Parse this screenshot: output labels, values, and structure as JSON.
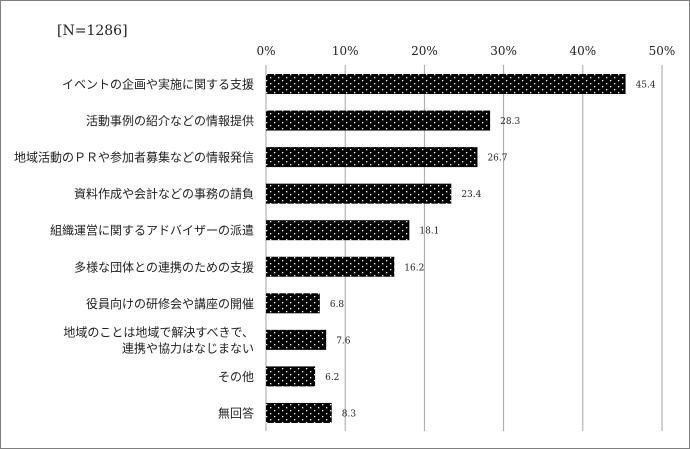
{
  "chart_data": {
    "type": "bar",
    "orientation": "horizontal",
    "sample_label": "[N=1286]",
    "categories": [
      [
        "イベントの企画や実施に関する支援"
      ],
      [
        "活動事例の紹介などの情報提供"
      ],
      [
        "地域活動のＰＲや参加者募集などの情報発信"
      ],
      [
        "資料作成や会計などの事務の請負"
      ],
      [
        "組織運営に関するアドバイザーの派遣"
      ],
      [
        "多様な団体との連携のための支援"
      ],
      [
        "役員向けの研修会や講座の開催"
      ],
      [
        "地域のことは地域で解決すべきで、",
        "連携や協力はなじまない"
      ],
      [
        "その他"
      ],
      [
        "無回答"
      ]
    ],
    "values": [
      45.4,
      28.3,
      26.7,
      23.4,
      18.1,
      16.2,
      6.8,
      7.6,
      6.2,
      8.3
    ],
    "value_labels": [
      "45.4",
      "28.3",
      "26.7",
      "23.4",
      "18.1",
      "16.2",
      "6.8",
      "7.6",
      "6.2",
      "8.3"
    ],
    "xlim": [
      0,
      50
    ],
    "x_ticks": [
      0,
      10,
      20,
      30,
      40,
      50
    ],
    "x_tick_labels": [
      "0%",
      "10%",
      "20%",
      "30%",
      "40%",
      "50%"
    ],
    "grid": true,
    "legend": "none",
    "bar_color": "#000000",
    "bar_pattern": "white-dots",
    "grid_color": "#a6a6a6"
  }
}
